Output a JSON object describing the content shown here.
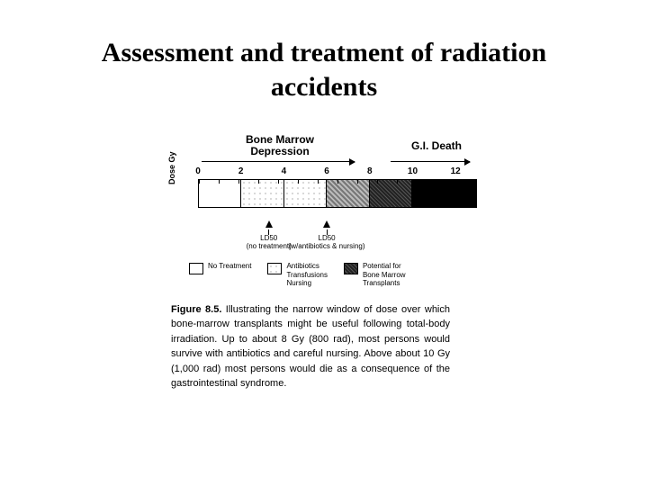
{
  "title_line1": "Assessment and treatment of radiation",
  "title_line2": "accidents",
  "diagram": {
    "type": "infographic",
    "top_labels": {
      "bone_marrow": "Bone Marrow\nDepression",
      "gi_death": "G.I. Death"
    },
    "y_axis_label": "Dose Gy",
    "ticks": [
      "0",
      "2",
      "4",
      "6",
      "8",
      "10",
      "12"
    ],
    "xlim": [
      0,
      13
    ],
    "segments": [
      {
        "from": 0,
        "to": 2,
        "pattern": "pat-white"
      },
      {
        "from": 2,
        "to": 4,
        "pattern": "pat-light"
      },
      {
        "from": 4,
        "to": 6,
        "pattern": "pat-light"
      },
      {
        "from": 6,
        "to": 8,
        "pattern": "pat-medium"
      },
      {
        "from": 8,
        "to": 10,
        "pattern": "pat-dense"
      },
      {
        "from": 10,
        "to": 13,
        "pattern": "pat-black"
      }
    ],
    "ld_markers": [
      {
        "pos": 3.3,
        "label": "LD50",
        "sub": "(no treatment)"
      },
      {
        "pos": 6.0,
        "label": "LD50",
        "sub": "(w/antibiotics & nursing)"
      }
    ],
    "legend": [
      {
        "pattern": "pat-white",
        "text": "No Treatment"
      },
      {
        "pattern": "pat-light",
        "text": "Antibiotics\nTransfusions\nNursing"
      },
      {
        "pattern": "pat-dense",
        "text": "Potential for\nBone Marrow\nTransplants"
      }
    ],
    "arrows": {
      "bm": {
        "left_pct": 10,
        "width_pct": 48
      },
      "gi": {
        "left_pct": 72,
        "width_pct": 26
      }
    },
    "colors": {
      "text": "#000000",
      "background": "#ffffff",
      "border": "#000000"
    },
    "title_fontsize": 30,
    "body_fontsize": 11,
    "small_fontsize": 8
  },
  "caption": {
    "lead": "Figure 8.5.",
    "body": " Illustrating the narrow window of dose over which bone-marrow transplants might be useful following total-body irradiation. Up to about 8 Gy (800 rad), most persons would survive with antibiotics and careful nursing. Above about 10 Gy (1,000 rad) most persons would die as a consequence of the gastrointestinal syndrome."
  }
}
